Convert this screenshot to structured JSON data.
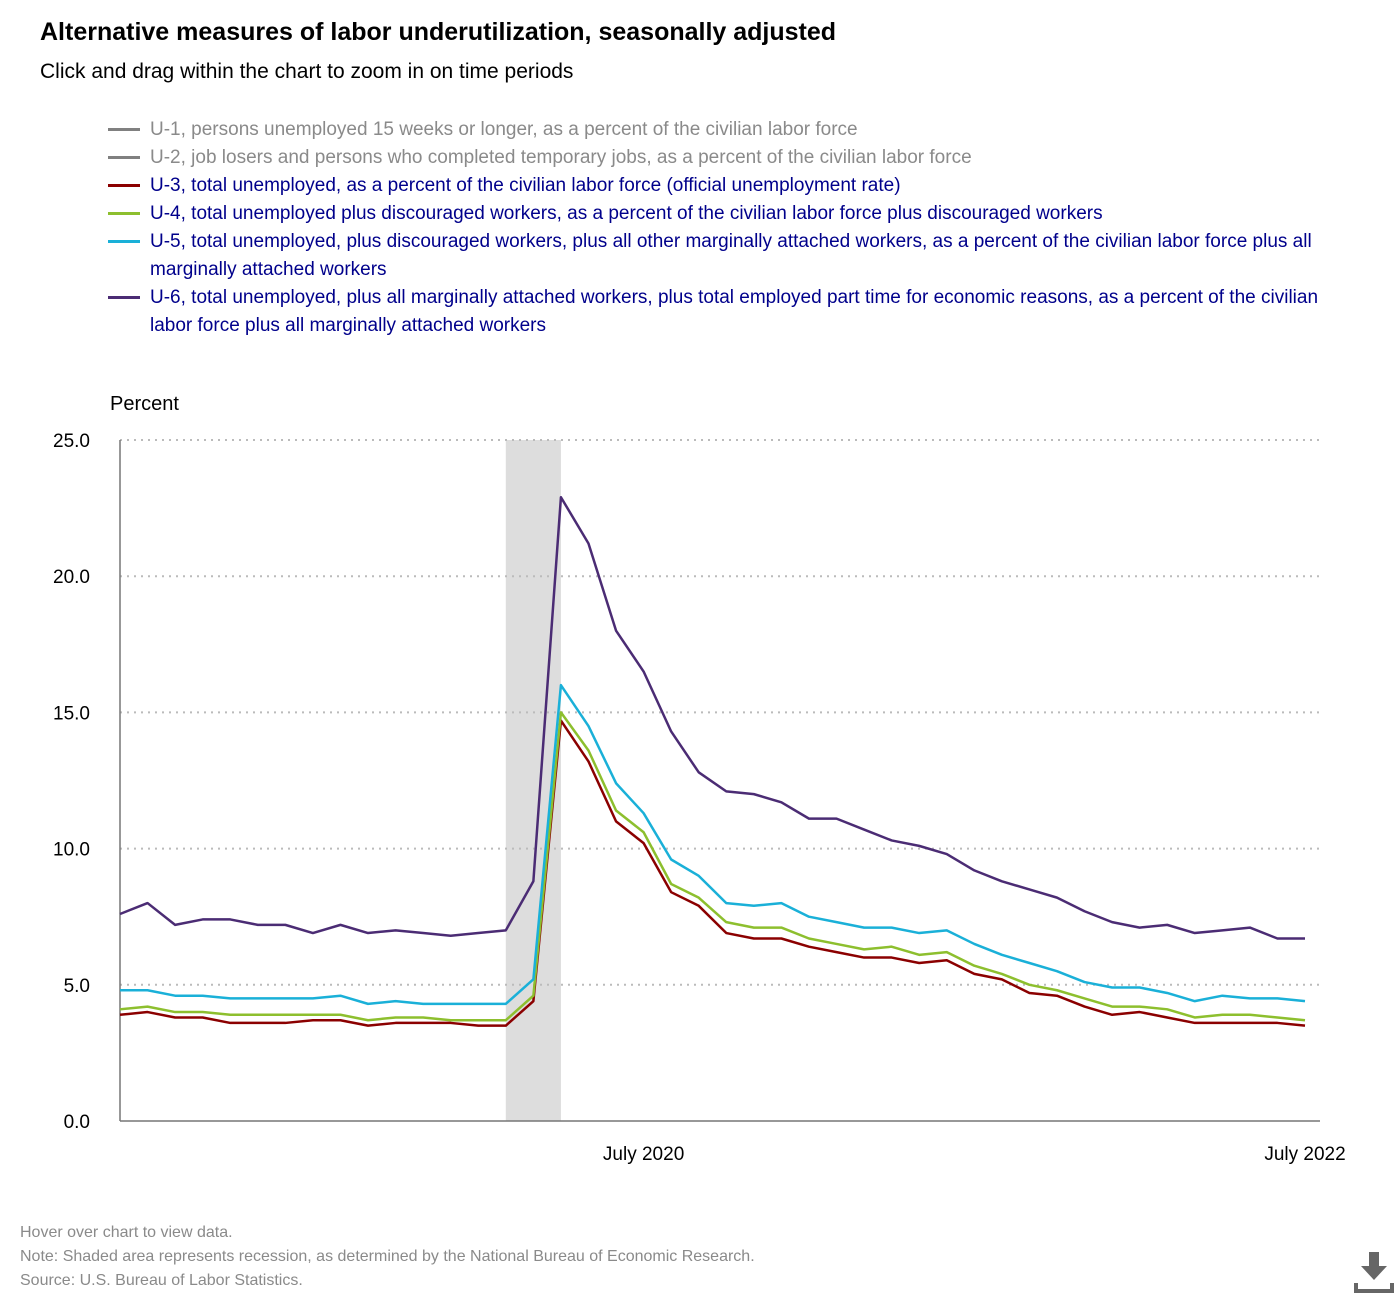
{
  "title": "Alternative measures of labor underutilization, seasonally adjusted",
  "subtitle": "Click and drag within the chart to zoom in on time periods",
  "legend": [
    {
      "label": "U-1, persons unemployed 15 weeks or longer, as a percent of the civilian labor force",
      "color": "#808080",
      "enabled": false
    },
    {
      "label": "U-2, job losers and persons who completed temporary jobs, as a percent of the civilian labor force",
      "color": "#808080",
      "enabled": false
    },
    {
      "label": "U-3, total unemployed, as a percent of the civilian labor force (official unemployment rate)",
      "color": "#8b0000",
      "enabled": true
    },
    {
      "label": "U-4, total unemployed plus discouraged workers, as a percent of the civilian labor force plus discouraged workers",
      "color": "#8dbf2e",
      "enabled": true
    },
    {
      "label": "U-5, total unemployed, plus discouraged workers, plus all other marginally attached workers, as a percent of the civilian labor force plus all marginally attached workers",
      "color": "#1ab0d8",
      "enabled": true
    },
    {
      "label": "U-6, total unemployed, plus all marginally attached workers, plus total employed part time for economic reasons, as a percent of the civilian labor force plus all marginally attached workers",
      "color": "#4b2c74",
      "enabled": true
    }
  ],
  "chart_data": {
    "type": "line",
    "ylabel": "Percent",
    "ylim": [
      0,
      25
    ],
    "yticks": [
      "0.0",
      "5.0",
      "10.0",
      "15.0",
      "20.0",
      "25.0"
    ],
    "x_range": [
      "Dec 2018",
      "Jul 2022"
    ],
    "xtick_labels": [
      {
        "label": "July 2020",
        "index": 19
      },
      {
        "label": "July 2022",
        "index": 43
      }
    ],
    "recession": {
      "start_index": 14,
      "end_index": 16,
      "color": "#dddddd"
    },
    "series": [
      {
        "name": "U-3",
        "color": "#8b0000",
        "values": [
          3.9,
          4.0,
          3.8,
          3.8,
          3.6,
          3.6,
          3.6,
          3.7,
          3.7,
          3.5,
          3.6,
          3.6,
          3.6,
          3.5,
          3.5,
          4.4,
          14.7,
          13.2,
          11.0,
          10.2,
          8.4,
          7.9,
          6.9,
          6.7,
          6.7,
          6.4,
          6.2,
          6.0,
          6.0,
          5.8,
          5.9,
          5.4,
          5.2,
          4.7,
          4.6,
          4.2,
          3.9,
          4.0,
          3.8,
          3.6,
          3.6,
          3.6,
          3.6,
          3.5
        ]
      },
      {
        "name": "U-4",
        "color": "#8dbf2e",
        "values": [
          4.1,
          4.2,
          4.0,
          4.0,
          3.9,
          3.9,
          3.9,
          3.9,
          3.9,
          3.7,
          3.8,
          3.8,
          3.7,
          3.7,
          3.7,
          4.6,
          15.0,
          13.6,
          11.4,
          10.6,
          8.7,
          8.2,
          7.3,
          7.1,
          7.1,
          6.7,
          6.5,
          6.3,
          6.4,
          6.1,
          6.2,
          5.7,
          5.4,
          5.0,
          4.8,
          4.5,
          4.2,
          4.2,
          4.1,
          3.8,
          3.9,
          3.9,
          3.8,
          3.7
        ]
      },
      {
        "name": "U-5",
        "color": "#1ab0d8",
        "values": [
          4.8,
          4.8,
          4.6,
          4.6,
          4.5,
          4.5,
          4.5,
          4.5,
          4.6,
          4.3,
          4.4,
          4.3,
          4.3,
          4.3,
          4.3,
          5.2,
          16.0,
          14.5,
          12.4,
          11.3,
          9.6,
          9.0,
          8.0,
          7.9,
          8.0,
          7.5,
          7.3,
          7.1,
          7.1,
          6.9,
          7.0,
          6.5,
          6.1,
          5.8,
          5.5,
          5.1,
          4.9,
          4.9,
          4.7,
          4.4,
          4.6,
          4.5,
          4.5,
          4.4
        ]
      },
      {
        "name": "U-6",
        "color": "#4b2c74",
        "values": [
          7.6,
          8.0,
          7.2,
          7.4,
          7.4,
          7.2,
          7.2,
          6.9,
          7.2,
          6.9,
          7.0,
          6.9,
          6.8,
          6.9,
          7.0,
          8.8,
          22.9,
          21.2,
          18.0,
          16.5,
          14.3,
          12.8,
          12.1,
          12.0,
          11.7,
          11.1,
          11.1,
          10.7,
          10.3,
          10.1,
          9.8,
          9.2,
          8.8,
          8.5,
          8.2,
          7.7,
          7.3,
          7.1,
          7.2,
          6.9,
          7.0,
          7.1,
          6.7,
          6.7
        ]
      }
    ]
  },
  "footer": {
    "hover": "Hover over chart to view data.",
    "note": "Note: Shaded area represents recession, as determined by the National Bureau of Economic Research.",
    "source": "Source: U.S. Bureau of Labor Statistics."
  },
  "icons": {
    "download": "download-icon"
  }
}
